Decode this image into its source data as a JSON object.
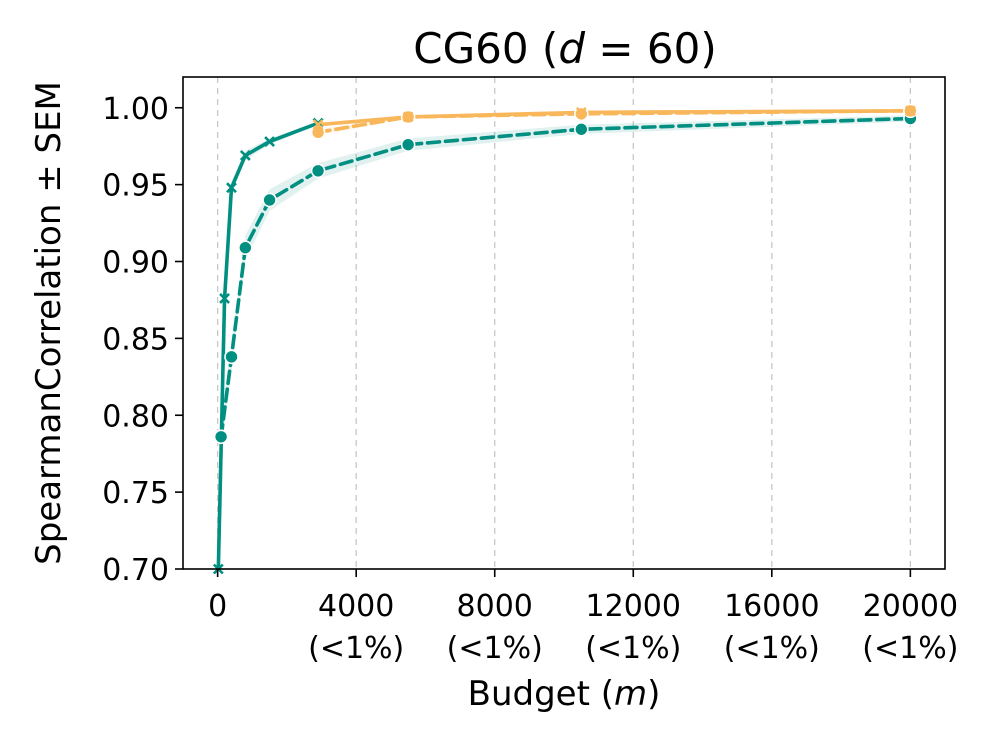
{
  "chart_data": {
    "type": "line",
    "title": "CG60 (d = 60)",
    "title_parts": {
      "prefix": "CG60 (",
      "italic": "d",
      "suffix": " = 60)"
    },
    "xlabel": "Budget (m)",
    "xlabel_parts": {
      "prefix": "Budget (",
      "italic": "m",
      "suffix": ")"
    },
    "ylabel": "SpearmanCorrelation ± SEM",
    "xlim": [
      -1000,
      21000
    ],
    "ylim": [
      0.7,
      1.02
    ],
    "grid": {
      "x": true,
      "y": false
    },
    "legend": "none",
    "x_ticks": [
      {
        "value": 0,
        "label": "0",
        "sublabel": ""
      },
      {
        "value": 4000,
        "label": "4000",
        "sublabel": "(<1%)"
      },
      {
        "value": 8000,
        "label": "8000",
        "sublabel": "(<1%)"
      },
      {
        "value": 12000,
        "label": "12000",
        "sublabel": "(<1%)"
      },
      {
        "value": 16000,
        "label": "16000",
        "sublabel": "(<1%)"
      },
      {
        "value": 20000,
        "label": "20000",
        "sublabel": "(<1%)"
      }
    ],
    "y_ticks": [
      {
        "value": 0.7,
        "label": "0.70"
      },
      {
        "value": 0.75,
        "label": "0.75"
      },
      {
        "value": 0.8,
        "label": "0.80"
      },
      {
        "value": 0.85,
        "label": "0.85"
      },
      {
        "value": 0.9,
        "label": "0.90"
      },
      {
        "value": 0.95,
        "label": "0.95"
      },
      {
        "value": 1.0,
        "label": "1.00"
      }
    ],
    "series": [
      {
        "color": "#008f80",
        "marker": "circle",
        "line_style": "dashed",
        "x": [
          100,
          400,
          800,
          1500,
          2900,
          5500,
          10500,
          20000
        ],
        "y": [
          0.786,
          0.838,
          0.909,
          0.94,
          0.959,
          0.976,
          0.986,
          0.993
        ],
        "sem": [
          0.012,
          0.01,
          0.008,
          0.007,
          0.005,
          0.004,
          0.003,
          0.002
        ]
      },
      {
        "color": "#008f80",
        "marker": "x",
        "line_style": "solid",
        "x": [
          20,
          200,
          400,
          800,
          1500,
          2900
        ],
        "y": [
          0.7,
          0.876,
          0.948,
          0.969,
          0.978,
          0.99
        ],
        "sem": [
          0.0,
          0.006,
          0.004,
          0.003,
          0.002,
          0.001
        ]
      },
      {
        "color": "#f8b75a",
        "marker": "circle",
        "line_style": "dashed",
        "x": [
          2900,
          5500,
          10500,
          20000
        ],
        "y": [
          0.984,
          0.994,
          0.996,
          0.998
        ],
        "sem": [
          0.002,
          0.001,
          0.001,
          0.001
        ]
      },
      {
        "color": "#f8b75a",
        "marker": "x",
        "line_style": "solid",
        "x": [
          2900,
          5500,
          10500,
          20000
        ],
        "y": [
          0.989,
          0.994,
          0.997,
          0.998
        ],
        "sem": [
          0.001,
          0.001,
          0.001,
          0.001
        ]
      }
    ]
  }
}
